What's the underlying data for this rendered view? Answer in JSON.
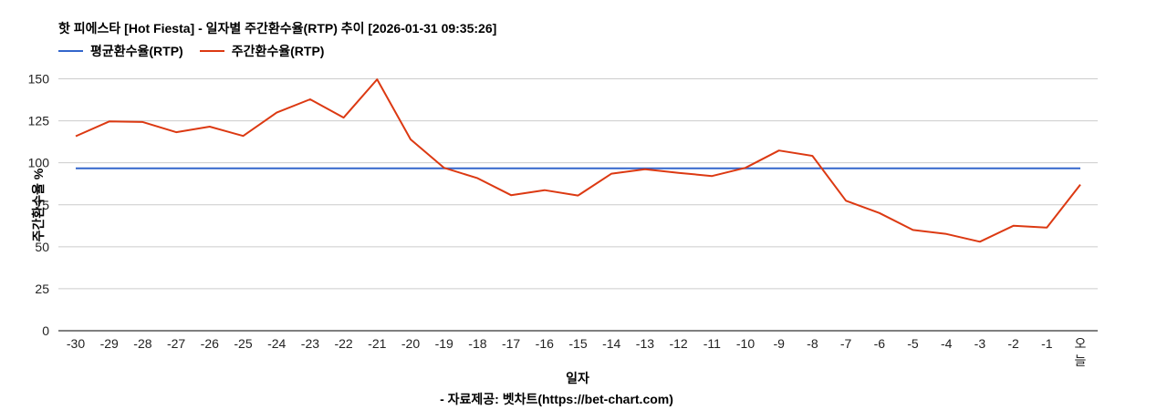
{
  "header": {
    "title": "핫 피에스타 [Hot Fiesta] - 일자별 주간환수율(RTP) 추이 [2026-01-31 09:35:26]"
  },
  "legend": [
    {
      "label": "평균환수율(RTP)",
      "color": "#3366cc"
    },
    {
      "label": "주간환수율(RTP)",
      "color": "#dc3912"
    }
  ],
  "footer": {
    "credit": "- 자료제공: 벳차트(https://bet-chart.com)"
  },
  "chart_data": {
    "type": "line",
    "title": "핫 피에스타 [Hot Fiesta] - 일자별 주간환수율(RTP) 추이 [2026-01-31 09:35:26]",
    "xlabel": "일자",
    "ylabel": "주간환수율 %",
    "ylim": [
      0,
      150
    ],
    "yticks": [
      0,
      25,
      50,
      75,
      100,
      125,
      150
    ],
    "grid": true,
    "legend_position": "top",
    "categories": [
      "-30",
      "-29",
      "-28",
      "-27",
      "-26",
      "-25",
      "-24",
      "-23",
      "-22",
      "-21",
      "-20",
      "-19",
      "-18",
      "-17",
      "-16",
      "-15",
      "-14",
      "-13",
      "-12",
      "-11",
      "-10",
      "-9",
      "-8",
      "-7",
      "-6",
      "-5",
      "-4",
      "-3",
      "-2",
      "-1",
      "오늘"
    ],
    "series": [
      {
        "name": "평균환수율(RTP)",
        "color": "#3366cc",
        "values": [
          96.7,
          96.7,
          96.7,
          96.7,
          96.7,
          96.7,
          96.7,
          96.7,
          96.7,
          96.7,
          96.7,
          96.7,
          96.7,
          96.7,
          96.7,
          96.7,
          96.7,
          96.7,
          96.7,
          96.7,
          96.7,
          96.7,
          96.7,
          96.7,
          96.7,
          96.7,
          96.7,
          96.7,
          96.7,
          96.7,
          96.7
        ]
      },
      {
        "name": "주간환수율(RTP)",
        "color": "#dc3912",
        "values": [
          115.8,
          124.6,
          124.3,
          118.2,
          121.5,
          116.0,
          129.9,
          137.8,
          126.9,
          149.7,
          113.9,
          97.0,
          90.8,
          80.7,
          83.7,
          80.5,
          93.5,
          96.2,
          94.0,
          92.1,
          97.0,
          107.3,
          104.1,
          77.4,
          70.1,
          60.0,
          57.6,
          53.0,
          62.5,
          61.4,
          87.0
        ]
      }
    ]
  }
}
